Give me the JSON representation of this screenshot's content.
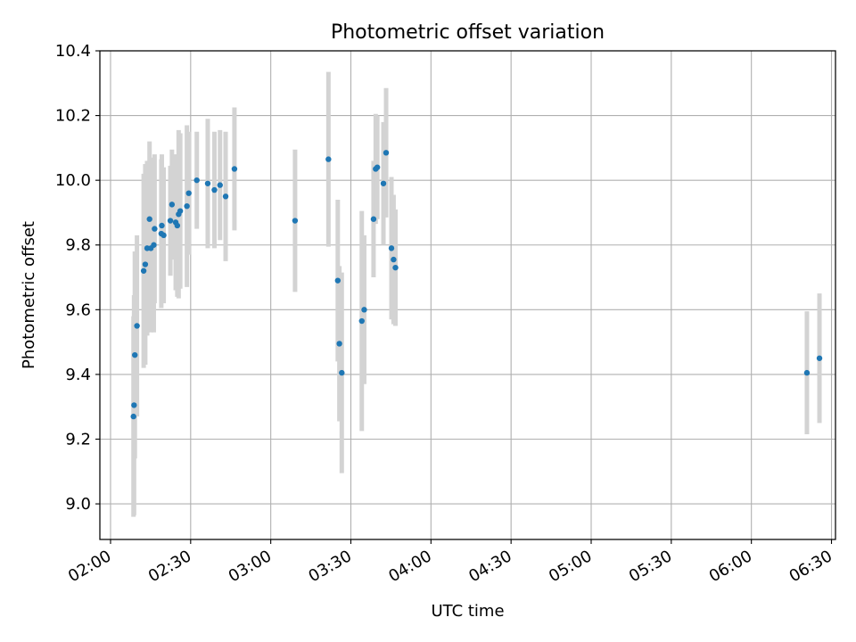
{
  "chart_data": {
    "type": "scatter",
    "title": "Photometric offset variation",
    "xlabel": "UTC time",
    "ylabel": "Photometric offset",
    "x_ticks": [
      "02:00",
      "02:30",
      "03:00",
      "03:30",
      "04:00",
      "04:30",
      "05:00",
      "05:30",
      "06:00",
      "06:30"
    ],
    "x_tick_minutes": [
      120,
      150,
      180,
      210,
      240,
      270,
      300,
      330,
      360,
      390
    ],
    "xlim_minutes": [
      116,
      391.5
    ],
    "y_ticks": [
      "9.0",
      "9.2",
      "9.4",
      "9.6",
      "9.8",
      "10.0",
      "10.2",
      "10.4"
    ],
    "y_tick_values": [
      9.0,
      9.2,
      9.4,
      9.6,
      9.8,
      10.0,
      10.2,
      10.4
    ],
    "ylim": [
      8.89,
      10.4
    ],
    "grid": true,
    "colors": {
      "points": "#1f77b4",
      "errorbars": "#d3d3d3",
      "grid": "#b0b0b0"
    },
    "series": [
      {
        "x_minutes": [
          128.6,
          128.8,
          129.1,
          129.9,
          132.4,
          133.0,
          133.7,
          134.6,
          135.1,
          136.2,
          136.5,
          139.0,
          139.2,
          139.9,
          142.4,
          143.0,
          144.4,
          145.0,
          145.5,
          146.1,
          148.6,
          149.3,
          152.3,
          156.4,
          158.9,
          161.0,
          163.1,
          166.4,
          189.1,
          201.6,
          205.1,
          205.7,
          206.6,
          214.1,
          215.0,
          218.5,
          219.3,
          219.9,
          222.2,
          223.2,
          225.2,
          226.0,
          226.7
        ],
        "y": [
          9.27,
          9.305,
          9.46,
          9.55,
          9.72,
          9.74,
          9.79,
          9.88,
          9.79,
          9.8,
          9.85,
          9.835,
          9.86,
          9.83,
          9.875,
          9.925,
          9.87,
          9.86,
          9.895,
          9.905,
          9.92,
          9.96,
          10.0,
          9.99,
          9.97,
          9.985,
          9.95,
          10.035,
          9.875,
          10.065,
          9.69,
          9.495,
          9.405,
          9.565,
          9.6,
          9.88,
          10.035,
          10.04,
          9.99,
          10.085,
          9.79,
          9.755,
          9.73
        ],
        "yerr": [
          0.31,
          0.34,
          0.32,
          0.28,
          0.3,
          0.31,
          0.27,
          0.24,
          0.26,
          0.27,
          0.23,
          0.23,
          0.22,
          0.21,
          0.17,
          0.17,
          0.21,
          0.22,
          0.26,
          0.24,
          0.25,
          0.19,
          0.15,
          0.2,
          0.18,
          0.17,
          0.2,
          0.19,
          0.22,
          0.27,
          0.25,
          0.24,
          0.31,
          0.34,
          0.23,
          0.18,
          0.17,
          0.16,
          0.19,
          0.2,
          0.22,
          0.2,
          0.18
        ]
      },
      {
        "x_minutes": [
          380.8,
          385.5
        ],
        "y": [
          9.405,
          9.45
        ],
        "yerr": [
          0.19,
          0.2
        ]
      }
    ]
  }
}
